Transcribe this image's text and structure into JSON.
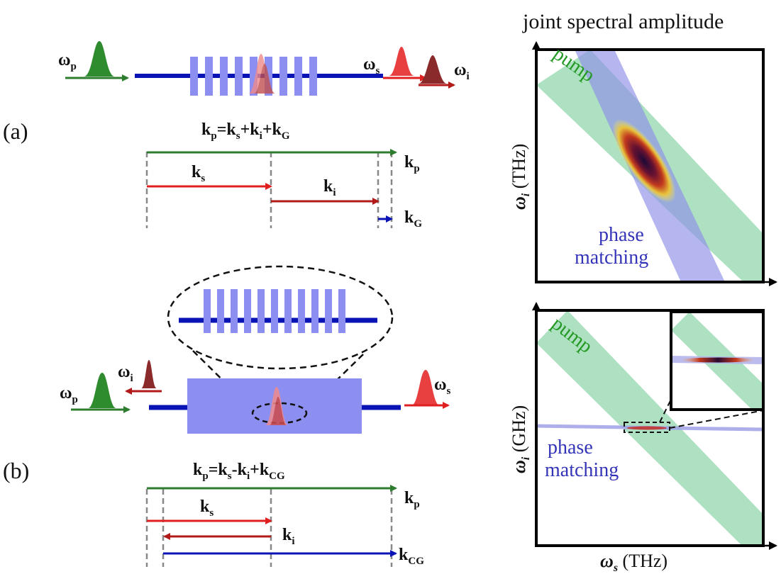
{
  "colors": {
    "pump_green": "#2e7d2e",
    "signal_red": "#e02020",
    "idler_darkred": "#b21a1a",
    "grating_blue": "#0a14b4",
    "grating_light": "#8c8ef0",
    "pm_band": "#8e8ee6",
    "pump_band": "#9fdcb7",
    "pump_text": "#249a24",
    "pm_text": "#3434b8"
  },
  "panel_a": {
    "label": "(a)",
    "omega_p": "ω",
    "omega_p_sub": "p",
    "omega_s": "ω",
    "omega_s_sub": "s",
    "omega_i": "ω",
    "omega_i_sub": "i",
    "eq": {
      "k1": "k",
      "s1": "p",
      "eq": "=",
      "k2": "k",
      "s2": "s",
      "op1": "+",
      "k3": "k",
      "s3": "i",
      "op2": "+",
      "k4": "k",
      "s4": "G"
    },
    "vec_kp": "k",
    "vec_kp_sub": "p",
    "vec_ks": "k",
    "vec_ks_sub": "s",
    "vec_ki": "k",
    "vec_ki_sub": "i",
    "vec_kg": "k",
    "vec_kg_sub": "G"
  },
  "panel_b": {
    "label": "(b)",
    "omega_p": "ω",
    "omega_p_sub": "p",
    "omega_i": "ω",
    "omega_i_sub": "i",
    "omega_s": "ω",
    "omega_s_sub": "s",
    "eq": {
      "k1": "k",
      "s1": "p",
      "eq": "=",
      "k2": "k",
      "s2": "s",
      "op1": "-",
      "k3": "k",
      "s3": "i",
      "op2": "+",
      "k4": "k",
      "s4": "CG"
    },
    "vec_kp": "k",
    "vec_kp_sub": "p",
    "vec_ks": "k",
    "vec_ks_sub": "s",
    "vec_ki": "k",
    "vec_ki_sub": "i",
    "vec_kcg": "k",
    "vec_kcg_sub": "CG"
  },
  "jsa_top": {
    "title": "joint spectral amplitude",
    "ylabel_sym": "ω",
    "ylabel_sub": "i",
    "ylabel_unit": " (THz)",
    "pump_label": "pump",
    "pm_label_1": "phase",
    "pm_label_2": "matching"
  },
  "jsa_bottom": {
    "ylabel_sym": "ω",
    "ylabel_sub": "i",
    "ylabel_unit": " (GHz)",
    "pump_label": "pump",
    "pm_label_1": "phase",
    "pm_label_2": "matching",
    "xlabel_sym": "ω",
    "xlabel_sub": "s",
    "xlabel_unit": " (THz)"
  }
}
